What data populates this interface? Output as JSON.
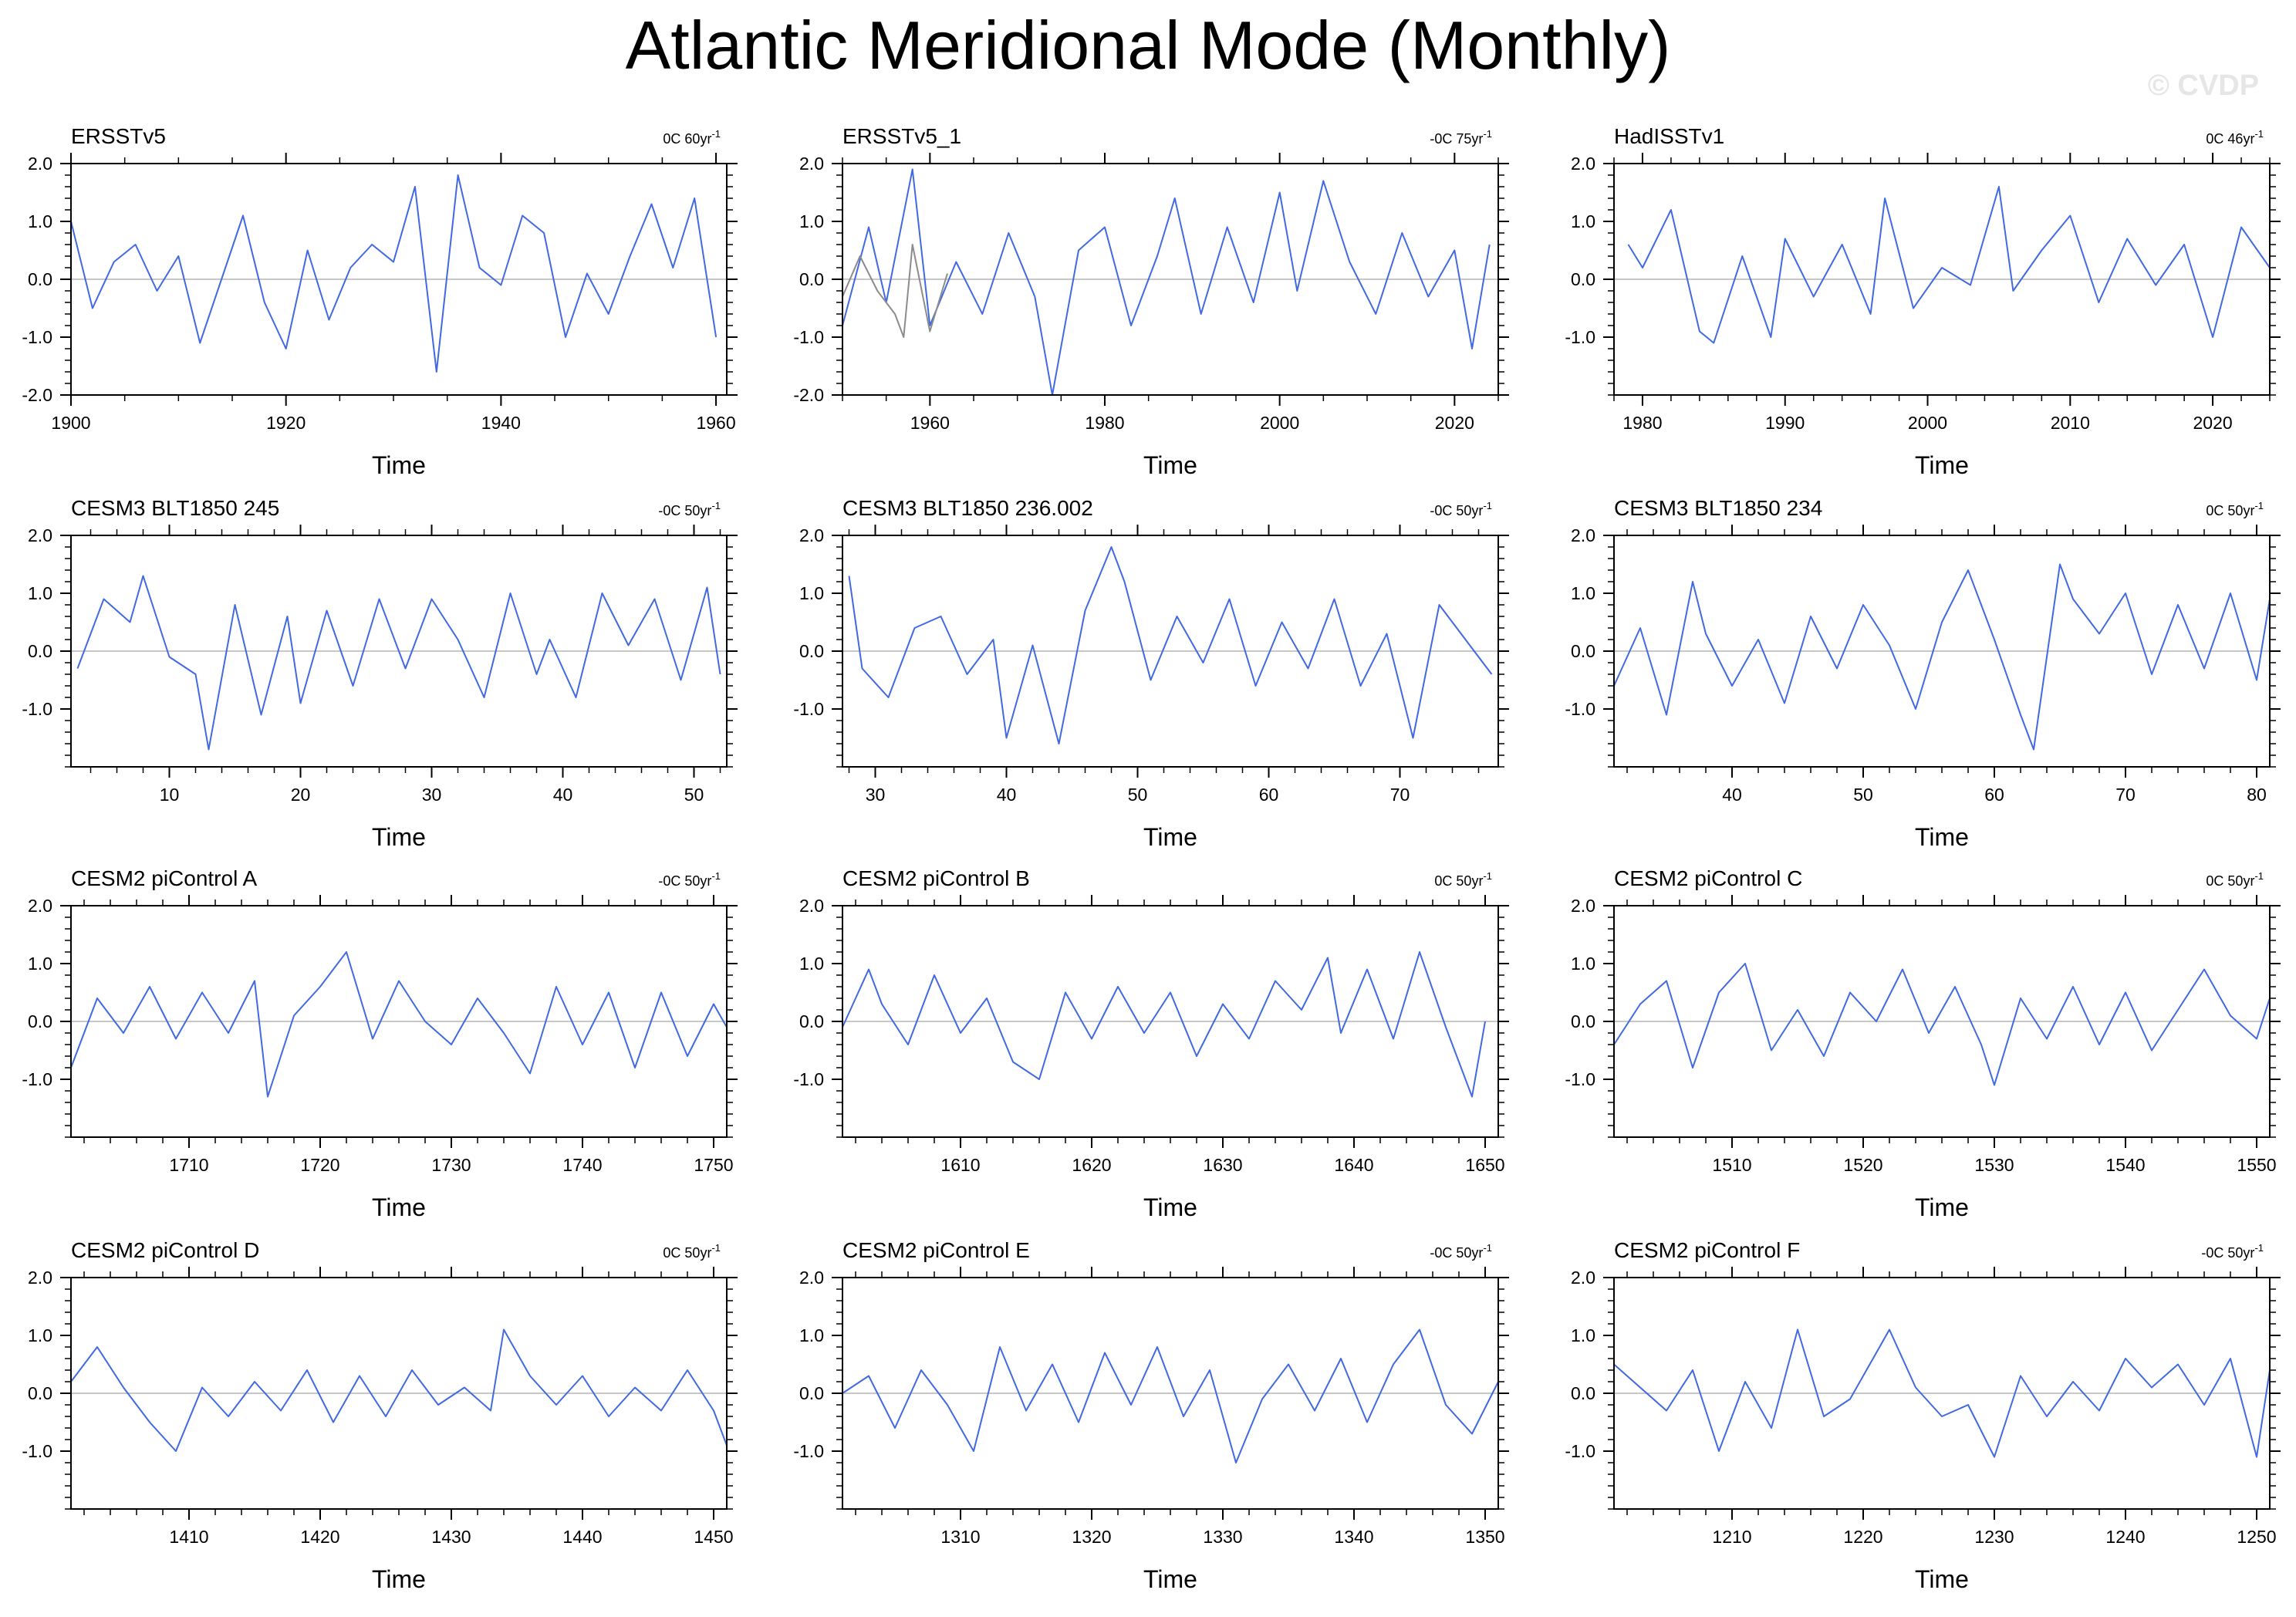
{
  "title": "Atlantic Meridional Mode (Monthly)",
  "watermark": "© CVDP",
  "colors": {
    "series": "#4169e1",
    "overlay": "#8c8c8c",
    "zero_line": "#c8c8c8",
    "frame": "#000000"
  },
  "chart_data": [
    {
      "type": "line",
      "title": "ERSSTv5",
      "trend_label": "0C 60yr",
      "trend_unit_exp": "-1",
      "xlabel": "Time",
      "ylabel": "",
      "xlim": [
        1900,
        1961
      ],
      "ylim": [
        -2.0,
        2.0
      ],
      "xticks": [
        1900,
        1920,
        1940,
        1960
      ],
      "yticks": [
        "2.0",
        "1.0",
        "0.0",
        "-1.0",
        "-2.0"
      ],
      "series": [
        {
          "x": [
            1900,
            1902,
            1904,
            1906,
            1908,
            1910,
            1912,
            1914,
            1916,
            1918,
            1920,
            1922,
            1924,
            1926,
            1928,
            1930,
            1932,
            1934,
            1936,
            1938,
            1940,
            1942,
            1944,
            1946,
            1948,
            1950,
            1952,
            1954,
            1956,
            1958,
            1960
          ],
          "values": [
            1.0,
            -0.5,
            0.3,
            0.6,
            -0.2,
            0.4,
            -1.1,
            0.0,
            1.1,
            -0.4,
            -1.2,
            0.5,
            -0.7,
            0.2,
            0.6,
            0.3,
            1.6,
            -1.6,
            1.8,
            0.2,
            -0.1,
            1.1,
            0.8,
            -1.0,
            0.1,
            -0.6,
            0.4,
            1.3,
            0.2,
            1.4,
            -1.0
          ]
        }
      ]
    },
    {
      "type": "line",
      "title": "ERSSTv5_1",
      "trend_label": "-0C 75yr",
      "trend_unit_exp": "-1",
      "xlabel": "Time",
      "ylabel": "",
      "xlim": [
        1950,
        2025
      ],
      "ylim": [
        -2.0,
        2.0
      ],
      "xticks": [
        1960,
        1980,
        2000,
        2020
      ],
      "yticks": [
        "2.0",
        "1.0",
        "0.0",
        "-1.0",
        "-2.0"
      ],
      "series": [
        {
          "x": [
            1950,
            1953,
            1955,
            1958,
            1960,
            1963,
            1966,
            1969,
            1972,
            1974,
            1977,
            1980,
            1983,
            1986,
            1988,
            1991,
            1994,
            1997,
            2000,
            2002,
            2005,
            2008,
            2011,
            2014,
            2017,
            2020,
            2022,
            2024
          ],
          "values": [
            -0.8,
            0.9,
            -0.4,
            1.9,
            -0.8,
            0.3,
            -0.6,
            0.8,
            -0.3,
            -2.0,
            0.5,
            0.9,
            -0.8,
            0.4,
            1.4,
            -0.6,
            0.9,
            -0.4,
            1.5,
            -0.2,
            1.7,
            0.3,
            -0.6,
            0.8,
            -0.3,
            0.5,
            -1.2,
            0.6
          ]
        },
        {
          "x": [
            1950,
            1952,
            1954,
            1956,
            1957,
            1958,
            1960,
            1962
          ],
          "values": [
            -0.3,
            0.4,
            -0.2,
            -0.6,
            -1.0,
            0.6,
            -0.9,
            0.1
          ]
        }
      ]
    },
    {
      "type": "line",
      "title": "HadISSTv1",
      "trend_label": "0C 46yr",
      "trend_unit_exp": "-1",
      "xlabel": "Time",
      "ylabel": "",
      "xlim": [
        1978,
        2024
      ],
      "ylim": [
        -2.0,
        2.0
      ],
      "xticks": [
        1980,
        1990,
        2000,
        2010,
        2020
      ],
      "yticks": [
        "2.0",
        "1.0",
        "0.0",
        "-1.0"
      ],
      "series": [
        {
          "x": [
            1979,
            1980,
            1982,
            1984,
            1985,
            1987,
            1989,
            1990,
            1992,
            1994,
            1996,
            1997,
            1999,
            2001,
            2003,
            2005,
            2006,
            2008,
            2010,
            2012,
            2014,
            2016,
            2018,
            2020,
            2022,
            2024
          ],
          "values": [
            0.6,
            0.2,
            1.2,
            -0.9,
            -1.1,
            0.4,
            -1.0,
            0.7,
            -0.3,
            0.6,
            -0.6,
            1.4,
            -0.5,
            0.2,
            -0.1,
            1.6,
            -0.2,
            0.5,
            1.1,
            -0.4,
            0.7,
            -0.1,
            0.6,
            -1.0,
            0.9,
            0.2
          ]
        }
      ]
    },
    {
      "type": "line",
      "title": "CESM3 BLT1850 245",
      "trend_label": "-0C 50yr",
      "trend_unit_exp": "-1",
      "xlabel": "Time",
      "ylabel": "",
      "xlim": [
        2.5,
        52.5
      ],
      "ylim": [
        -2.0,
        2.0
      ],
      "xticks": [
        10,
        20,
        30,
        40,
        50
      ],
      "yticks": [
        "2.0",
        "1.0",
        "0.0",
        "-1.0"
      ],
      "series": [
        {
          "x": [
            3,
            5,
            7,
            8,
            10,
            12,
            13,
            15,
            17,
            19,
            20,
            22,
            24,
            26,
            28,
            30,
            32,
            34,
            36,
            38,
            39,
            41,
            43,
            45,
            47,
            49,
            51,
            52
          ],
          "values": [
            -0.3,
            0.9,
            0.5,
            1.3,
            -0.1,
            -0.4,
            -1.7,
            0.8,
            -1.1,
            0.6,
            -0.9,
            0.7,
            -0.6,
            0.9,
            -0.3,
            0.9,
            0.2,
            -0.8,
            1.0,
            -0.4,
            0.2,
            -0.8,
            1.0,
            0.1,
            0.9,
            -0.5,
            1.1,
            -0.4
          ]
        }
      ]
    },
    {
      "type": "line",
      "title": "CESM3 BLT1850 236.002",
      "trend_label": "-0C 50yr",
      "trend_unit_exp": "-1",
      "xlabel": "Time",
      "ylabel": "",
      "xlim": [
        27.5,
        77.5
      ],
      "ylim": [
        -2.0,
        2.0
      ],
      "xticks": [
        30,
        40,
        50,
        60,
        70
      ],
      "yticks": [
        "2.0",
        "1.0",
        "0.0",
        "-1.0"
      ],
      "series": [
        {
          "x": [
            28,
            29,
            31,
            33,
            35,
            37,
            39,
            40,
            42,
            44,
            46,
            48,
            49,
            51,
            53,
            55,
            57,
            59,
            61,
            63,
            65,
            67,
            69,
            71,
            73,
            75,
            77
          ],
          "values": [
            1.3,
            -0.3,
            -0.8,
            0.4,
            0.6,
            -0.4,
            0.2,
            -1.5,
            0.1,
            -1.6,
            0.7,
            1.8,
            1.2,
            -0.5,
            0.6,
            -0.2,
            0.9,
            -0.6,
            0.5,
            -0.3,
            0.9,
            -0.6,
            0.3,
            -1.5,
            0.8,
            0.2,
            -0.4
          ]
        }
      ]
    },
    {
      "type": "line",
      "title": "CESM3 BLT1850 234",
      "trend_label": "0C 50yr",
      "trend_unit_exp": "-1",
      "xlabel": "Time",
      "ylabel": "",
      "xlim": [
        31,
        81
      ],
      "ylim": [
        -2.0,
        2.0
      ],
      "xticks": [
        40,
        50,
        60,
        70,
        80
      ],
      "yticks": [
        "2.0",
        "1.0",
        "0.0",
        "-1.0"
      ],
      "series": [
        {
          "x": [
            31,
            33,
            35,
            37,
            38,
            40,
            42,
            44,
            46,
            48,
            50,
            52,
            54,
            56,
            58,
            60,
            62,
            63,
            65,
            66,
            68,
            70,
            72,
            74,
            76,
            78,
            80,
            81
          ],
          "values": [
            -0.6,
            0.4,
            -1.1,
            1.2,
            0.3,
            -0.6,
            0.2,
            -0.9,
            0.6,
            -0.3,
            0.8,
            0.1,
            -1.0,
            0.5,
            1.4,
            0.2,
            -1.1,
            -1.7,
            1.5,
            0.9,
            0.3,
            1.0,
            -0.4,
            0.8,
            -0.3,
            1.0,
            -0.5,
            0.9
          ]
        }
      ]
    },
    {
      "type": "line",
      "title": "CESM2 piControl A",
      "trend_label": "-0C 50yr",
      "trend_unit_exp": "-1",
      "xlabel": "Time",
      "ylabel": "",
      "xlim": [
        1701,
        1751
      ],
      "ylim": [
        -2.0,
        2.0
      ],
      "xticks": [
        1710,
        1720,
        1730,
        1740,
        1750
      ],
      "yticks": [
        "2.0",
        "1.0",
        "0.0",
        "-1.0"
      ],
      "series": [
        {
          "x": [
            1701,
            1703,
            1705,
            1707,
            1709,
            1711,
            1713,
            1715,
            1716,
            1718,
            1720,
            1722,
            1724,
            1726,
            1728,
            1730,
            1732,
            1734,
            1736,
            1738,
            1740,
            1742,
            1744,
            1746,
            1748,
            1750,
            1751
          ],
          "values": [
            -0.8,
            0.4,
            -0.2,
            0.6,
            -0.3,
            0.5,
            -0.2,
            0.7,
            -1.3,
            0.1,
            0.6,
            1.2,
            -0.3,
            0.7,
            0.0,
            -0.4,
            0.4,
            -0.2,
            -0.9,
            0.6,
            -0.4,
            0.5,
            -0.8,
            0.5,
            -0.6,
            0.3,
            -0.1
          ]
        }
      ]
    },
    {
      "type": "line",
      "title": "CESM2 piControl B",
      "trend_label": "0C 50yr",
      "trend_unit_exp": "-1",
      "xlabel": "Time",
      "ylabel": "",
      "xlim": [
        1601,
        1651
      ],
      "ylim": [
        -2.0,
        2.0
      ],
      "xticks": [
        1610,
        1620,
        1630,
        1640,
        1650
      ],
      "yticks": [
        "2.0",
        "1.0",
        "0.0",
        "-1.0"
      ],
      "series": [
        {
          "x": [
            1601,
            1603,
            1604,
            1606,
            1608,
            1610,
            1612,
            1614,
            1616,
            1618,
            1620,
            1622,
            1624,
            1626,
            1628,
            1630,
            1632,
            1634,
            1636,
            1638,
            1639,
            1641,
            1643,
            1645,
            1647,
            1649,
            1650
          ],
          "values": [
            -0.1,
            0.9,
            0.3,
            -0.4,
            0.8,
            -0.2,
            0.4,
            -0.7,
            -1.0,
            0.5,
            -0.3,
            0.6,
            -0.2,
            0.5,
            -0.6,
            0.3,
            -0.3,
            0.7,
            0.2,
            1.1,
            -0.2,
            0.9,
            -0.3,
            1.2,
            -0.1,
            -1.3,
            0.0
          ]
        }
      ]
    },
    {
      "type": "line",
      "title": "CESM2 piControl C",
      "trend_label": "0C 50yr",
      "trend_unit_exp": "-1",
      "xlabel": "Time",
      "ylabel": "",
      "xlim": [
        1501,
        1551
      ],
      "ylim": [
        -2.0,
        2.0
      ],
      "xticks": [
        1510,
        1520,
        1530,
        1540,
        1550
      ],
      "yticks": [
        "2.0",
        "1.0",
        "0.0",
        "-1.0"
      ],
      "series": [
        {
          "x": [
            1501,
            1503,
            1505,
            1507,
            1509,
            1511,
            1513,
            1515,
            1517,
            1519,
            1521,
            1523,
            1525,
            1527,
            1529,
            1530,
            1532,
            1534,
            1536,
            1538,
            1540,
            1542,
            1544,
            1546,
            1548,
            1550,
            1551
          ],
          "values": [
            -0.4,
            0.3,
            0.7,
            -0.8,
            0.5,
            1.0,
            -0.5,
            0.2,
            -0.6,
            0.5,
            0.0,
            0.9,
            -0.2,
            0.6,
            -0.4,
            -1.1,
            0.4,
            -0.3,
            0.6,
            -0.4,
            0.5,
            -0.5,
            0.2,
            0.9,
            0.1,
            -0.3,
            0.4
          ]
        }
      ]
    },
    {
      "type": "line",
      "title": "CESM2 piControl D",
      "trend_label": "0C 50yr",
      "trend_unit_exp": "-1",
      "xlabel": "Time",
      "ylabel": "",
      "xlim": [
        1401,
        1451
      ],
      "ylim": [
        -2.0,
        2.0
      ],
      "xticks": [
        1410,
        1420,
        1430,
        1440,
        1450
      ],
      "yticks": [
        "2.0",
        "1.0",
        "0.0",
        "-1.0"
      ],
      "series": [
        {
          "x": [
            1401,
            1403,
            1405,
            1407,
            1409,
            1411,
            1413,
            1415,
            1417,
            1419,
            1421,
            1423,
            1425,
            1427,
            1429,
            1431,
            1433,
            1434,
            1436,
            1438,
            1440,
            1442,
            1444,
            1446,
            1448,
            1450,
            1451
          ],
          "values": [
            0.2,
            0.8,
            0.1,
            -0.5,
            -1.0,
            0.1,
            -0.4,
            0.2,
            -0.3,
            0.4,
            -0.5,
            0.3,
            -0.4,
            0.4,
            -0.2,
            0.1,
            -0.3,
            1.1,
            0.3,
            -0.2,
            0.3,
            -0.4,
            0.1,
            -0.3,
            0.4,
            -0.3,
            -0.9
          ]
        }
      ]
    },
    {
      "type": "line",
      "title": "CESM2 piControl E",
      "trend_label": "-0C 50yr",
      "trend_unit_exp": "-1",
      "xlabel": "Time",
      "ylabel": "",
      "xlim": [
        1301,
        1351
      ],
      "ylim": [
        -2.0,
        2.0
      ],
      "xticks": [
        1310,
        1320,
        1330,
        1340,
        1350
      ],
      "yticks": [
        "2.0",
        "1.0",
        "0.0",
        "-1.0"
      ],
      "series": [
        {
          "x": [
            1301,
            1303,
            1305,
            1307,
            1309,
            1311,
            1313,
            1315,
            1317,
            1319,
            1321,
            1323,
            1325,
            1327,
            1329,
            1331,
            1333,
            1335,
            1337,
            1339,
            1341,
            1343,
            1345,
            1347,
            1349,
            1351
          ],
          "values": [
            0.0,
            0.3,
            -0.6,
            0.4,
            -0.2,
            -1.0,
            0.8,
            -0.3,
            0.5,
            -0.5,
            0.7,
            -0.2,
            0.8,
            -0.4,
            0.4,
            -1.2,
            -0.1,
            0.5,
            -0.3,
            0.6,
            -0.5,
            0.5,
            1.1,
            -0.2,
            -0.7,
            0.2
          ]
        }
      ]
    },
    {
      "type": "line",
      "title": "CESM2 piControl F",
      "trend_label": "-0C 50yr",
      "trend_unit_exp": "-1",
      "xlabel": "Time",
      "ylabel": "",
      "xlim": [
        1201,
        1251
      ],
      "ylim": [
        -2.0,
        2.0
      ],
      "xticks": [
        1210,
        1220,
        1230,
        1240,
        1250
      ],
      "yticks": [
        "2.0",
        "1.0",
        "0.0",
        "-1.0"
      ],
      "series": [
        {
          "x": [
            1201,
            1203,
            1205,
            1207,
            1209,
            1211,
            1213,
            1215,
            1217,
            1219,
            1221,
            1222,
            1224,
            1226,
            1228,
            1230,
            1232,
            1234,
            1236,
            1238,
            1240,
            1242,
            1244,
            1246,
            1248,
            1250,
            1251
          ],
          "values": [
            0.5,
            0.1,
            -0.3,
            0.4,
            -1.0,
            0.2,
            -0.6,
            1.1,
            -0.4,
            -0.1,
            0.7,
            1.1,
            0.1,
            -0.4,
            -0.2,
            -1.1,
            0.3,
            -0.4,
            0.2,
            -0.3,
            0.6,
            0.1,
            0.5,
            -0.2,
            0.6,
            -1.1,
            0.4
          ]
        }
      ]
    }
  ]
}
